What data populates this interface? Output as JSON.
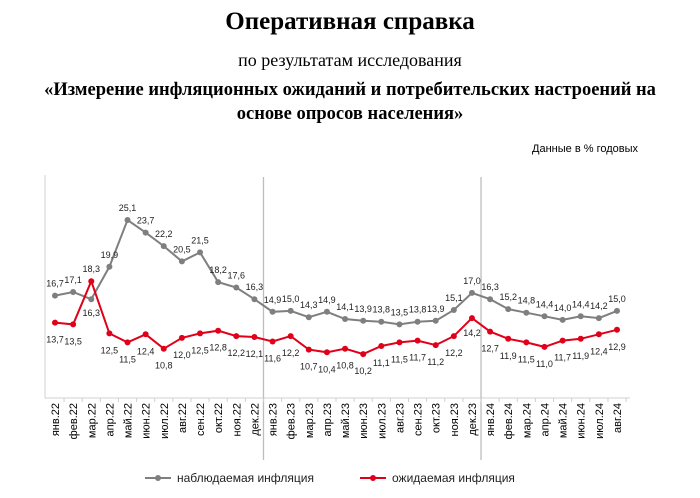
{
  "header": {
    "title": "Оперативная справка",
    "subtitle": "по результатам исследования",
    "study_title": "«Измерение инфляционных ожиданий и потребительских настроений на основе опросов населения»",
    "units_note": "Данные в % годовых"
  },
  "chart_data": {
    "type": "line",
    "categories": [
      "янв.22",
      "фев.22",
      "мар.22",
      "апр.22",
      "май.22",
      "июн.22",
      "июл.22",
      "авг.22",
      "сен.22",
      "окт.22",
      "ноя.22",
      "дек.22",
      "янв.23",
      "фев.23",
      "мар.23",
      "апр.23",
      "май.23",
      "июн.23",
      "июл.23",
      "авг.23",
      "сен.23",
      "окт.23",
      "ноя.23",
      "дек.23",
      "янв.24",
      "фев.24",
      "мар.24",
      "апр.24",
      "май.24",
      "июн.24",
      "июл.24",
      "авг.24"
    ],
    "series": [
      {
        "name": "наблюдаемая инфляция",
        "color": "#7f7f7f",
        "values": [
          16.7,
          17.1,
          16.3,
          19.9,
          25.1,
          23.7,
          22.2,
          20.5,
          21.5,
          18.2,
          17.6,
          16.3,
          14.9,
          15.0,
          14.3,
          14.9,
          14.1,
          13.9,
          13.8,
          13.5,
          13.8,
          13.9,
          15.1,
          17.0,
          16.3,
          15.2,
          14.8,
          14.4,
          14.0,
          14.4,
          14.2,
          15.0
        ],
        "labels": [
          "16,7",
          "17,1",
          "16,3",
          "19,9",
          "25,1",
          "23,7",
          "22,2",
          "20,5",
          "21,5",
          "18,2",
          "17,6",
          "16,3",
          "14,9",
          "15,0",
          "14,3",
          "14,9",
          "14,1",
          "13,9",
          "13,8",
          "13,5",
          "13,8",
          "13,9",
          "15,1",
          "17,0",
          "16,3",
          "15,2",
          "14,8",
          "14,4",
          "14,0",
          "14,4",
          "14,2",
          "15,0"
        ]
      },
      {
        "name": "ожидаемая инфляция",
        "color": "#e0001a",
        "values": [
          13.7,
          13.5,
          18.3,
          12.5,
          11.5,
          12.4,
          10.8,
          12.0,
          12.5,
          12.8,
          12.2,
          12.1,
          11.6,
          12.2,
          10.7,
          10.4,
          10.8,
          10.2,
          11.1,
          11.5,
          11.7,
          11.2,
          12.2,
          14.2,
          12.7,
          11.9,
          11.5,
          11.0,
          11.7,
          11.9,
          12.4,
          12.9
        ],
        "labels": [
          "13,7",
          "13,5",
          "18,3",
          "12,5",
          "11,5",
          "12,4",
          "10,8",
          "12,0",
          "12,5",
          "12,8",
          "12,2",
          "12,1",
          "11,6",
          "12,2",
          "10,7",
          "10,4",
          "10,8",
          "10,2",
          "11,1",
          "11,5",
          "11,7",
          "11,2",
          "12,2",
          "14,2",
          "12,7",
          "11,9",
          "11,5",
          "11,0",
          "11,7",
          "11,9",
          "12,4",
          "12,9"
        ]
      }
    ],
    "year_separators_after": [
      "дек.22",
      "дек.23"
    ],
    "grid": false,
    "legend": "bottom",
    "xlabel": "",
    "ylabel": "",
    "title": ""
  }
}
